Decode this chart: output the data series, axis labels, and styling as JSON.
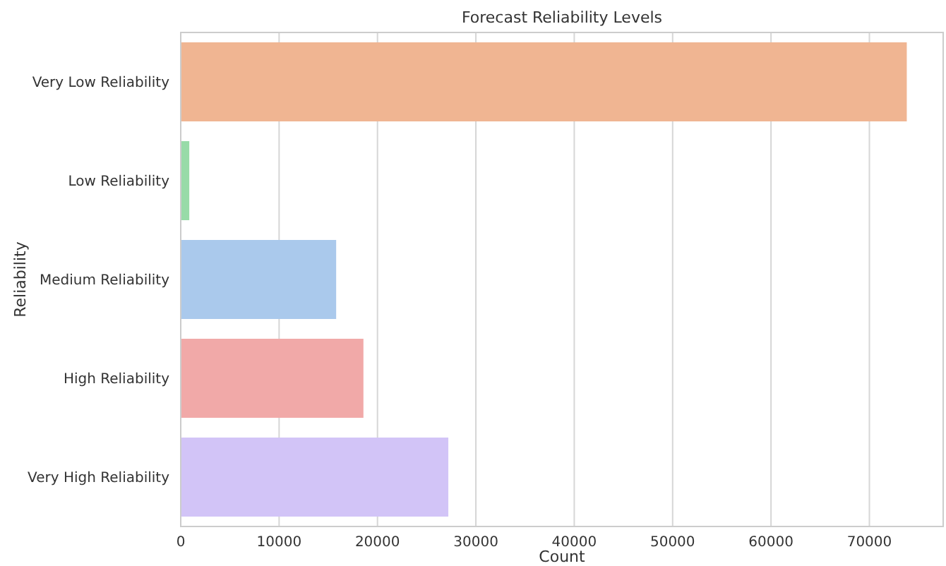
{
  "chart_data": {
    "type": "bar",
    "orientation": "horizontal",
    "title": "Forecast Reliability Levels",
    "xlabel": "Count",
    "ylabel": "Reliability",
    "categories": [
      "Very Low Reliability",
      "Low Reliability",
      "Medium Reliability",
      "High Reliability",
      "Very High Reliability"
    ],
    "values": [
      73800,
      870,
      15800,
      18570,
      27200
    ],
    "colors": [
      "#f0b592",
      "#98dba8",
      "#aac9ec",
      "#f1a9a8",
      "#d2c4f7"
    ],
    "xlim": [
      0,
      77500
    ],
    "xticks": [
      0,
      10000,
      20000,
      30000,
      40000,
      50000,
      60000,
      70000
    ],
    "grid": "x"
  }
}
